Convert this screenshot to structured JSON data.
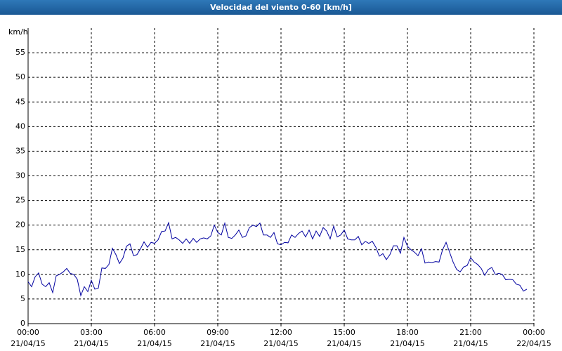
{
  "chart_data": {
    "type": "line",
    "title": "Velocidad del viento 0-60 [km/h]",
    "y_label": "km/h",
    "x": [
      0,
      10,
      20,
      30,
      40,
      50,
      60,
      70,
      80,
      90,
      100,
      110,
      120,
      130,
      140,
      150,
      160,
      170,
      180,
      190,
      200,
      210,
      220,
      230,
      240,
      250,
      260,
      270,
      280,
      290,
      300,
      310,
      320,
      330,
      340,
      350,
      360,
      370,
      380,
      390,
      400,
      410,
      420,
      430,
      440,
      450,
      460,
      470,
      480,
      490,
      500,
      510,
      520,
      530,
      540,
      550,
      560,
      570,
      580,
      590,
      600,
      610,
      620,
      630,
      640,
      650,
      660,
      670,
      680,
      690,
      700,
      710,
      720,
      730,
      740,
      750,
      760,
      770,
      780,
      790,
      800,
      810,
      820,
      830,
      840,
      850,
      860,
      870,
      880,
      890,
      900,
      910,
      920,
      930,
      940,
      950,
      960,
      970,
      980,
      990,
      1000,
      1010,
      1020,
      1030,
      1040,
      1050,
      1060,
      1070,
      1080,
      1090,
      1100,
      1110,
      1120,
      1130,
      1140,
      1150,
      1160,
      1170,
      1180,
      1190,
      1200,
      1210,
      1220,
      1230,
      1240,
      1250,
      1260,
      1270,
      1280,
      1290,
      1300,
      1310,
      1320,
      1330,
      1340,
      1350,
      1360,
      1370,
      1380,
      1390,
      1400,
      1410,
      1420
    ],
    "series": [
      {
        "name": "Velocidad del viento",
        "color": "#0000a0",
        "values": [
          8.5,
          7.5,
          9.5,
          10.3,
          8,
          7.5,
          8.3,
          6.3,
          9.7,
          10,
          10.5,
          11.2,
          10.2,
          10,
          9,
          5.7,
          7.5,
          6.5,
          8.8,
          7,
          7.2,
          11.3,
          11.2,
          12,
          15.3,
          14,
          12.2,
          13.3,
          15.7,
          16.2,
          13.8,
          14,
          15.2,
          16.6,
          15.5,
          16.5,
          16.3,
          17,
          18.7,
          18.8,
          20.5,
          17.2,
          17.5,
          17,
          16.3,
          17.2,
          16.3,
          17.3,
          16.5,
          17.2,
          17.4,
          17.2,
          17.8,
          20,
          18.5,
          18,
          20.4,
          17.5,
          17.3,
          18,
          19,
          17.5,
          17.8,
          19.5,
          20,
          19.7,
          20.4,
          18,
          18,
          17.5,
          18.5,
          16.2,
          16,
          16.5,
          16.4,
          18,
          17.5,
          18.3,
          18.8,
          17.6,
          19,
          17.2,
          18.8,
          17.7,
          19.5,
          18.8,
          17.2,
          19.8,
          17.6,
          18,
          19,
          17.2,
          17,
          17,
          17.7,
          16,
          16.7,
          16.3,
          16.7,
          15.5,
          13.7,
          14.2,
          13,
          14,
          15.8,
          15.8,
          14.3,
          17.5,
          15.7,
          15,
          14.5,
          13.8,
          15.2,
          12.3,
          12.5,
          12.4,
          12.6,
          12.5,
          15,
          16.5,
          14.5,
          12.5,
          11,
          10.5,
          11.5,
          11.8,
          13.4,
          12.5,
          12,
          11.2,
          9.8,
          11,
          11.4,
          10,
          10.2,
          10,
          8.9,
          9,
          8.9,
          8,
          7.8,
          6.6,
          7
        ]
      }
    ],
    "xlim": [
      0,
      1440
    ],
    "xticks": [
      {
        "value": 0,
        "label": "00:00 21/04/15"
      },
      {
        "value": 180,
        "label": "03:00 21/04/15"
      },
      {
        "value": 360,
        "label": "06:00 21/04/15"
      },
      {
        "value": 540,
        "label": "09:00 21/04/15"
      },
      {
        "value": 720,
        "label": "12:00 21/04/15"
      },
      {
        "value": 900,
        "label": "15:00 21/04/15"
      },
      {
        "value": 1080,
        "label": "18:00 21/04/15"
      },
      {
        "value": 1260,
        "label": "21:00 21/04/15"
      },
      {
        "value": 1440,
        "label": "00:00 22/04/15"
      }
    ],
    "ylim": [
      0,
      60
    ],
    "yticks": [
      0,
      5,
      10,
      15,
      20,
      25,
      30,
      35,
      40,
      45,
      50,
      55
    ],
    "grid": true
  }
}
